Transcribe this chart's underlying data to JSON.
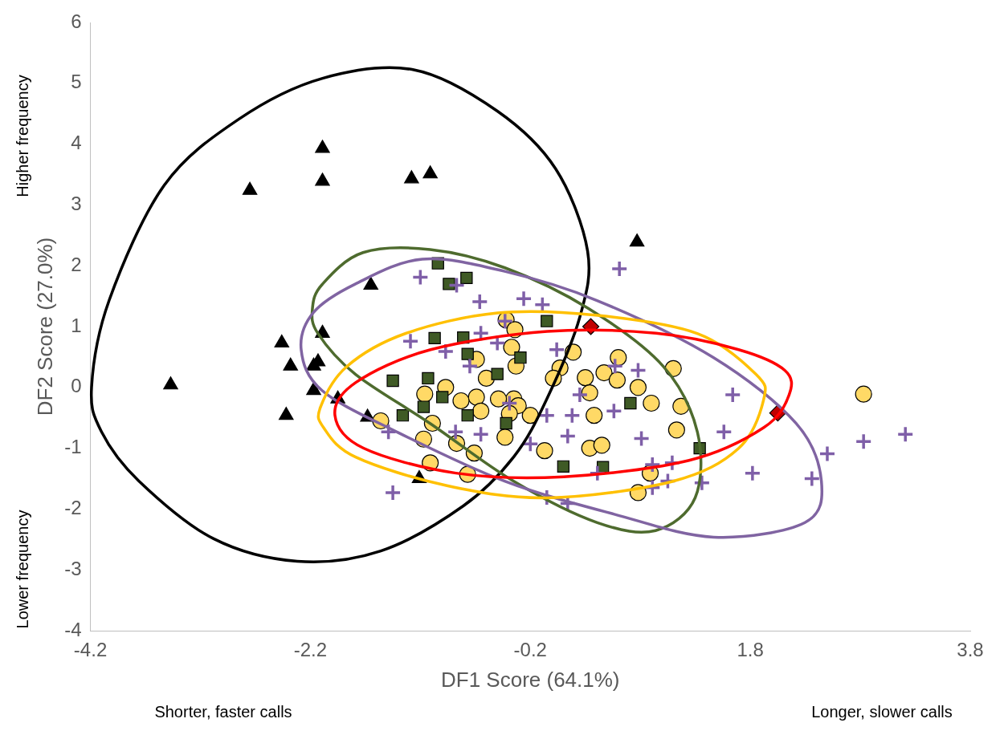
{
  "chart_data": {
    "type": "scatter",
    "xlabel": "DF1 Score (64.1%)",
    "ylabel": "DF2 Score (27.0%)",
    "annotations": [
      "Higher frequency",
      "Lower frequency",
      "Shorter, faster calls",
      "Longer, slower calls"
    ],
    "xlim": [
      -4.2,
      3.8
    ],
    "xticks": [
      -4.2,
      -2.2,
      -0.2,
      1.8,
      3.8
    ],
    "ylim": [
      -4,
      6
    ],
    "yticks": [
      -4,
      -3,
      -2,
      -1,
      0,
      1,
      2,
      3,
      4,
      5,
      6
    ],
    "grid": false,
    "legend": false,
    "series": [
      {
        "type": "scatter",
        "marker": "cross",
        "color": "#7f5fa8",
        "x": [
          -1.2,
          -0.87,
          -0.66,
          -1.29,
          -0.97,
          -0.65,
          -0.26,
          -0.09,
          0.61,
          -0.75,
          -0.5,
          -1.49,
          -1.45,
          -0.88,
          -0.65,
          -0.39,
          -0.2,
          -0.05,
          -0.05,
          0.14,
          0.14,
          0.18,
          0.41,
          0.57,
          0.56,
          0.81,
          0.91,
          0.91,
          1.05,
          1.09,
          1.36,
          1.56,
          1.64,
          1.82,
          2.36,
          2.5,
          2.83,
          3.21,
          0.04,
          0.25,
          0.78,
          -0.43
        ],
        "values": [
          1.81,
          1.68,
          1.41,
          0.76,
          0.59,
          0.89,
          1.46,
          1.36,
          1.95,
          0.35,
          0.73,
          -0.73,
          -1.73,
          -0.73,
          -0.77,
          -0.26,
          -0.93,
          -0.46,
          -1.81,
          -1.91,
          -0.8,
          -0.46,
          -1.41,
          0.35,
          -0.39,
          -0.84,
          -1.27,
          -1.65,
          -1.54,
          -1.24,
          -1.57,
          -0.73,
          -0.12,
          -1.41,
          -1.5,
          -1.09,
          -0.89,
          -0.77,
          0.62,
          -0.12,
          0.28,
          1.09
        ]
      },
      {
        "type": "scatter",
        "marker": "triangle",
        "color": "#000000",
        "x": [
          -3.47,
          -2.75,
          -2.09,
          -2.09,
          -1.28,
          -1.11,
          -1.65,
          -2.46,
          -2.38,
          -2.09,
          -2.13,
          -2.17,
          -1.95,
          -2.42,
          -1.68,
          -1.21,
          0.77,
          -2.17
        ],
        "values": [
          0.04,
          3.24,
          3.93,
          3.39,
          3.43,
          3.51,
          1.68,
          0.73,
          0.35,
          0.89,
          0.42,
          -0.05,
          -0.19,
          -0.46,
          -0.49,
          -1.5,
          2.39,
          0.35
        ]
      },
      {
        "type": "scatter",
        "marker": "square",
        "color": "#3f5a25",
        "x": [
          -1.04,
          -0.94,
          -0.78,
          -1.07,
          -0.81,
          -1.45,
          -1.36,
          -1.13,
          -1,
          -1.17,
          -0.77,
          -0.05,
          -0.29,
          -0.5,
          -0.42,
          0.1,
          0.46,
          1.34,
          -0.77,
          0.71
        ],
        "values": [
          2.04,
          1.7,
          1.8,
          0.81,
          0.82,
          0.11,
          -0.46,
          0.15,
          -0.16,
          -0.32,
          0.55,
          1.09,
          0.49,
          0.22,
          -0.59,
          -1.3,
          -1.31,
          -1,
          -0.46,
          -0.26
        ]
      },
      {
        "type": "scatter",
        "marker": "diamond",
        "color": "#c00000",
        "x": [
          0.35,
          2.05
        ],
        "values": [
          1,
          -0.42
        ]
      },
      {
        "type": "scatter",
        "marker": "circle",
        "color": "#ffd966",
        "x": [
          -0.42,
          -0.34,
          -0.37,
          -0.33,
          -0.69,
          -0.6,
          0.07,
          0.01,
          0.19,
          0.3,
          0.34,
          0.47,
          0.6,
          0.59,
          0.78,
          0.9,
          1.1,
          1.17,
          1.13,
          0.38,
          0.34,
          0.45,
          0.89,
          0.78,
          -0.07,
          -0.2,
          -0.35,
          -0.31,
          -0.39,
          -0.49,
          -0.69,
          -0.83,
          -0.97,
          -1.16,
          -1.09,
          -1.17,
          -0.87,
          -0.71,
          -0.77,
          -1.11,
          -1.56,
          -0.43,
          -0.65,
          2.83
        ],
        "values": [
          1.11,
          0.95,
          0.66,
          0.35,
          0.46,
          0.15,
          0.32,
          0.15,
          0.58,
          0.16,
          -0.09,
          0.24,
          0.49,
          0.12,
          0,
          -0.26,
          0.31,
          -0.31,
          -0.7,
          -0.46,
          -1,
          -0.95,
          -1.41,
          -1.73,
          -1.04,
          -0.46,
          -0.19,
          -0.3,
          -0.43,
          -0.19,
          -0.16,
          -0.22,
          0,
          -0.11,
          -0.59,
          -0.85,
          -0.92,
          -1.08,
          -1.43,
          -1.24,
          -0.55,
          -0.82,
          -0.39,
          -0.11
        ]
      }
    ]
  }
}
